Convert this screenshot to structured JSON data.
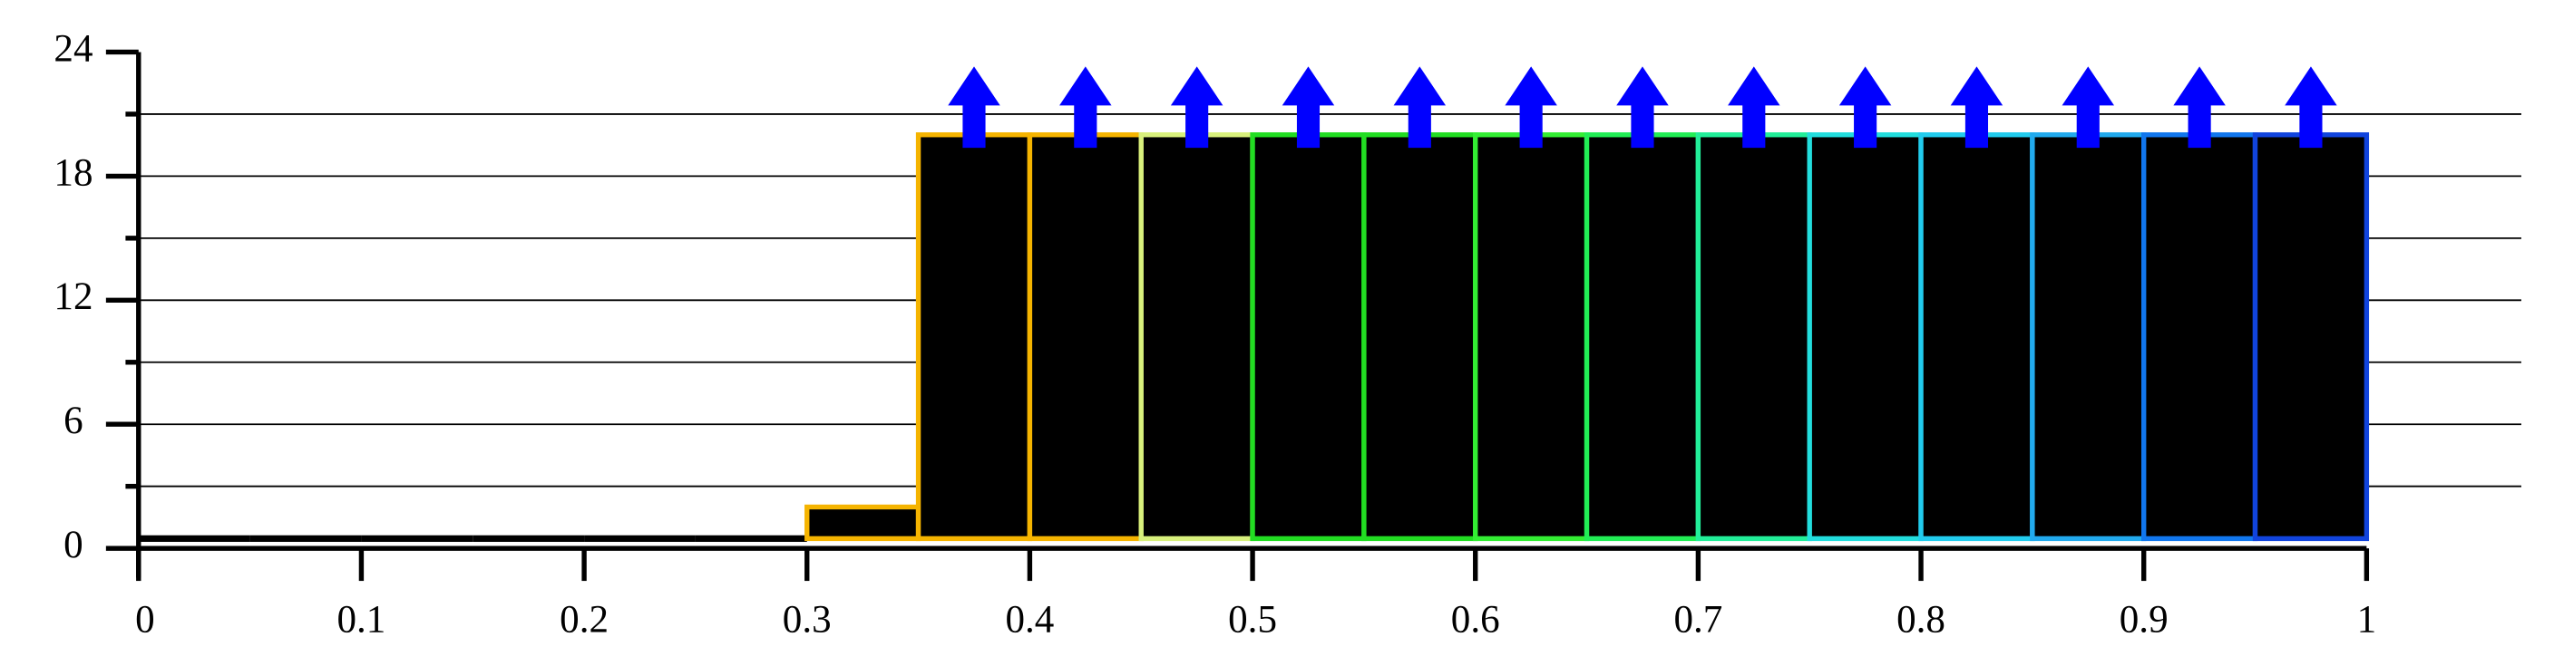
{
  "chart_data": {
    "type": "histogram",
    "bins": [
      0,
      0.05,
      0.1,
      0.15,
      0.2,
      0.25,
      0.3,
      0.35,
      0.4,
      0.45,
      0.5,
      0.55,
      0.6,
      0.65,
      0.7,
      0.75,
      0.8,
      0.85,
      0.9,
      0.95,
      1
    ],
    "values": [
      0,
      0,
      0,
      0,
      0,
      0,
      2,
      20,
      20,
      20,
      20,
      20,
      20,
      20,
      20,
      20,
      20,
      20,
      20,
      20
    ],
    "colors": [
      "#000000",
      "#000000",
      "#000000",
      "#000000",
      "#000000",
      "#000000",
      "#f5b400",
      "#f5b400",
      "#f5b400",
      "#d8f07c",
      "#22dd22",
      "#22dd22",
      "#33ee33",
      "#22ee55",
      "#22ee99",
      "#22dddd",
      "#22ccee",
      "#22aaee",
      "#1177ee",
      "#1144dd"
    ],
    "bar_fill": "#000000",
    "arrow_color": "#0000ff",
    "xlim": [
      0,
      1
    ],
    "xticks": [
      0,
      0.1,
      0.2,
      0.3,
      0.4,
      0.5,
      0.6,
      0.7,
      0.8,
      0.9,
      1
    ],
    "ylim": [
      0,
      24
    ],
    "yticks": [
      0,
      6,
      12,
      18,
      24
    ],
    "yminor": [
      3,
      9,
      15,
      21
    ],
    "grid": true
  }
}
